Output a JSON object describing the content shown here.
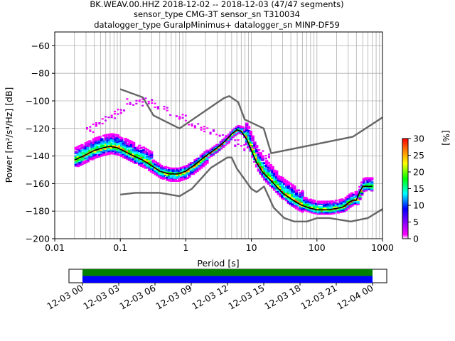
{
  "title_lines": [
    "BK.WEAV.00.HHZ   2018-12-02 -- 2018-12-03  (47/47 segments)",
    "sensor_type CMG-3T sensor_sn T310034",
    "datalogger_type GuralpMinimus+ datalogger_sn MINP-DF59"
  ],
  "chart_data": [
    {
      "type": "line",
      "title": "BK.WEAV.00.HHZ   2018-12-02 -- 2018-12-03  (47/47 segments)",
      "xlabel": "Period [s]",
      "ylabel": "Power [m²/s⁴/Hz] [dB]",
      "xscale": "log",
      "xlim": [
        0.01,
        1000
      ],
      "ylim": [
        -200,
        -50
      ],
      "xticks": [
        "0.01",
        "0.1",
        "1",
        "10",
        "100",
        "1000"
      ],
      "yticks": [
        "−200",
        "−180",
        "−160",
        "−140",
        "−120",
        "−100",
        "−80",
        "−60"
      ],
      "grid": true,
      "series": [
        {
          "role": "new-high-noise-model",
          "color": "#666666",
          "x": [
            0.1,
            0.22,
            0.32,
            0.8,
            3.8,
            4.6,
            6.3,
            7.9,
            15.4,
            20,
            354.8,
            1000
          ],
          "y": [
            -91.5,
            -97.4,
            -110.5,
            -120,
            -98,
            -96.5,
            -101,
            -113.5,
            -120,
            -138,
            -126,
            -112
          ]
        },
        {
          "role": "new-low-noise-model",
          "color": "#666666",
          "x": [
            0.1,
            0.17,
            0.4,
            0.8,
            1.24,
            2.4,
            4.3,
            5.0,
            6.0,
            10.0,
            12.0,
            15.6,
            21.9,
            31.6,
            45,
            70,
            101,
            154,
            328,
            600,
            1000
          ],
          "y": [
            -168,
            -166.7,
            -166.7,
            -169.2,
            -163.7,
            -148.6,
            -141.1,
            -141.1,
            -149,
            -163.8,
            -166.2,
            -162.1,
            -177.5,
            -185,
            -187.5,
            -187.5,
            -185,
            -185,
            -187.5,
            -185,
            -178.5
          ]
        },
        {
          "role": "mode",
          "color": "#000000",
          "x": [
            0.02,
            0.03,
            0.04,
            0.055,
            0.07,
            0.09,
            0.12,
            0.16,
            0.22,
            0.3,
            0.4,
            0.55,
            0.75,
            1.0,
            1.4,
            2.0,
            3.0,
            4.0,
            5.0,
            6.0,
            7.0,
            8.5,
            10,
            12,
            15,
            20,
            25,
            30,
            40,
            50,
            60,
            80,
            100,
            150,
            200,
            250,
            300,
            350,
            400,
            450,
            500,
            550,
            650,
            700
          ],
          "y": [
            -143,
            -139,
            -136,
            -134,
            -133,
            -134,
            -137,
            -140,
            -143,
            -147,
            -151,
            -153,
            -153,
            -151,
            -146,
            -140,
            -134,
            -129,
            -124,
            -121,
            -122,
            -128,
            -136,
            -145,
            -152,
            -158,
            -163,
            -167,
            -171,
            -174,
            -176,
            -178,
            -179,
            -179,
            -178,
            -177,
            -174,
            -172,
            -172,
            -166,
            -162,
            -162,
            -162,
            -162
          ]
        }
      ],
      "colorbar": {
        "label": "[%]",
        "range": [
          0,
          30
        ],
        "ticks": [
          "0",
          "5",
          "10",
          "15",
          "20",
          "25",
          "30"
        ],
        "colors": [
          "#ffffff",
          "#ff00ff",
          "#0000ff",
          "#00ffff",
          "#00ff00",
          "#ffff00",
          "#ff8000",
          "#ff0000"
        ]
      }
    },
    {
      "type": "timeline",
      "xticks": [
        "12-03 00",
        "12-03 03",
        "12-03 06",
        "12-03 09",
        "12-03 12",
        "12-03 15",
        "12-03 18",
        "12-03 21",
        "12-04 00"
      ],
      "bars": [
        {
          "color": "#008000",
          "start": "12-03 00",
          "end": "12-04 00"
        },
        {
          "color": "#0000ff",
          "start": "12-03 00",
          "end": "12-04 00"
        }
      ]
    }
  ]
}
